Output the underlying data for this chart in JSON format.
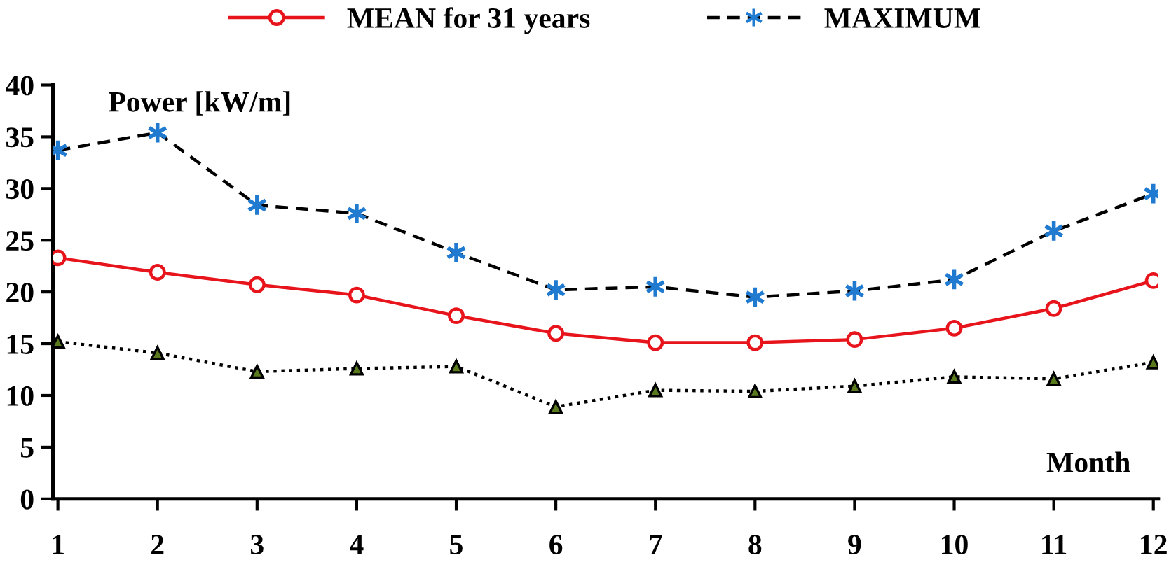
{
  "chart_data": {
    "type": "line",
    "ylabel": "Power [kW/m]",
    "xlabel": "Month",
    "categories": [
      "1",
      "2",
      "3",
      "4",
      "5",
      "6",
      "7",
      "8",
      "9",
      "10",
      "11",
      "12"
    ],
    "series": [
      {
        "name": "MEAN for 31 years",
        "color": "#e8141c",
        "marker": "circle",
        "line_style": "solid",
        "values": [
          23.3,
          21.9,
          20.7,
          19.7,
          17.7,
          16.0,
          15.1,
          15.1,
          15.4,
          16.5,
          18.4,
          21.1
        ]
      },
      {
        "name": "MAXIMUM",
        "color": "#000000",
        "colors": [
          "#1f7ad0",
          "#1f7ad0",
          "#1f7ad0",
          "#1f7ad0",
          "#1f7ad0",
          "#1f7ad0",
          "#1f7ad0",
          "#1f7ad0",
          "#1f7ad0",
          "#1f7ad0",
          "#1f7ad0",
          "#1f7ad0"
        ],
        "marker": "cross",
        "line_style": "dashed",
        "values": [
          33.7,
          35.4,
          28.4,
          27.6,
          23.8,
          20.2,
          20.5,
          19.5,
          20.1,
          21.2,
          25.9,
          29.5
        ]
      },
      {
        "color": "#000000",
        "colors": [
          "#5a7a1e",
          "#5a7a1e",
          "#5a7a1e",
          "#5a7a1e",
          "#5a7a1e",
          "#5a7a1e",
          "#5a7a1e",
          "#5a7a1e",
          "#5a7a1e",
          "#5a7a1e",
          "#5a7a1e",
          "#5a7a1e"
        ],
        "marker": "triangle",
        "line_style": "dotted",
        "values": [
          15.2,
          14.1,
          12.3,
          12.6,
          12.8,
          8.9,
          10.5,
          10.4,
          10.9,
          11.8,
          11.6,
          13.2
        ]
      }
    ],
    "ylim": [
      0,
      40
    ],
    "yticks": [
      0,
      5,
      10,
      15,
      20,
      25,
      30,
      35,
      40
    ],
    "grid": false,
    "legend": "top"
  }
}
